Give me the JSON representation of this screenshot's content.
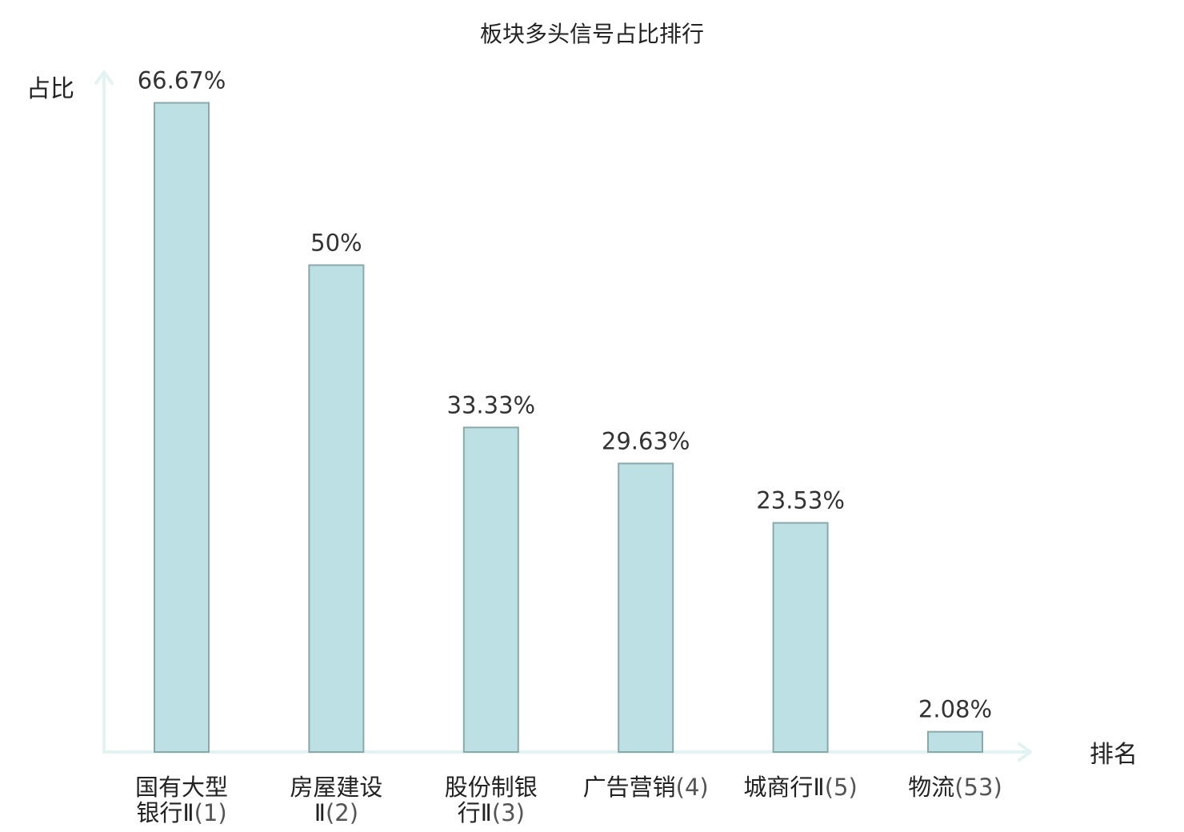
{
  "chart_data": {
    "type": "bar",
    "title": "板块多头信号占比排行",
    "ylabel": "占比",
    "xlabel": "排名",
    "ylim": [
      0,
      70
    ],
    "categories": [
      {
        "lines": [
          "国有大型",
          "银行Ⅱ"
        ],
        "rank": "(1)",
        "highlight": false
      },
      {
        "lines": [
          "房屋建设",
          "Ⅱ"
        ],
        "rank": "(2)",
        "highlight": false
      },
      {
        "lines": [
          "股份制银",
          "行Ⅱ"
        ],
        "rank": "(3)",
        "highlight": false
      },
      {
        "lines": [
          "广告营销"
        ],
        "rank": "(4)",
        "highlight": false
      },
      {
        "lines": [
          "城商行Ⅱ"
        ],
        "rank": "(5)",
        "highlight": false
      },
      {
        "lines": [
          "物流"
        ],
        "rank": "(53)",
        "highlight": true
      }
    ],
    "values": [
      66.67,
      50,
      33.33,
      29.63,
      23.53,
      2.08
    ],
    "value_labels": [
      "66.67%",
      "50%",
      "33.33%",
      "29.63%",
      "23.53%",
      "2.08%"
    ],
    "colors": {
      "bar_fill": "#bce0e3",
      "bar_stroke": "#8aa9ab",
      "axis": "#e3f3f1",
      "highlight_text": "#e0141e"
    },
    "grid": false
  }
}
